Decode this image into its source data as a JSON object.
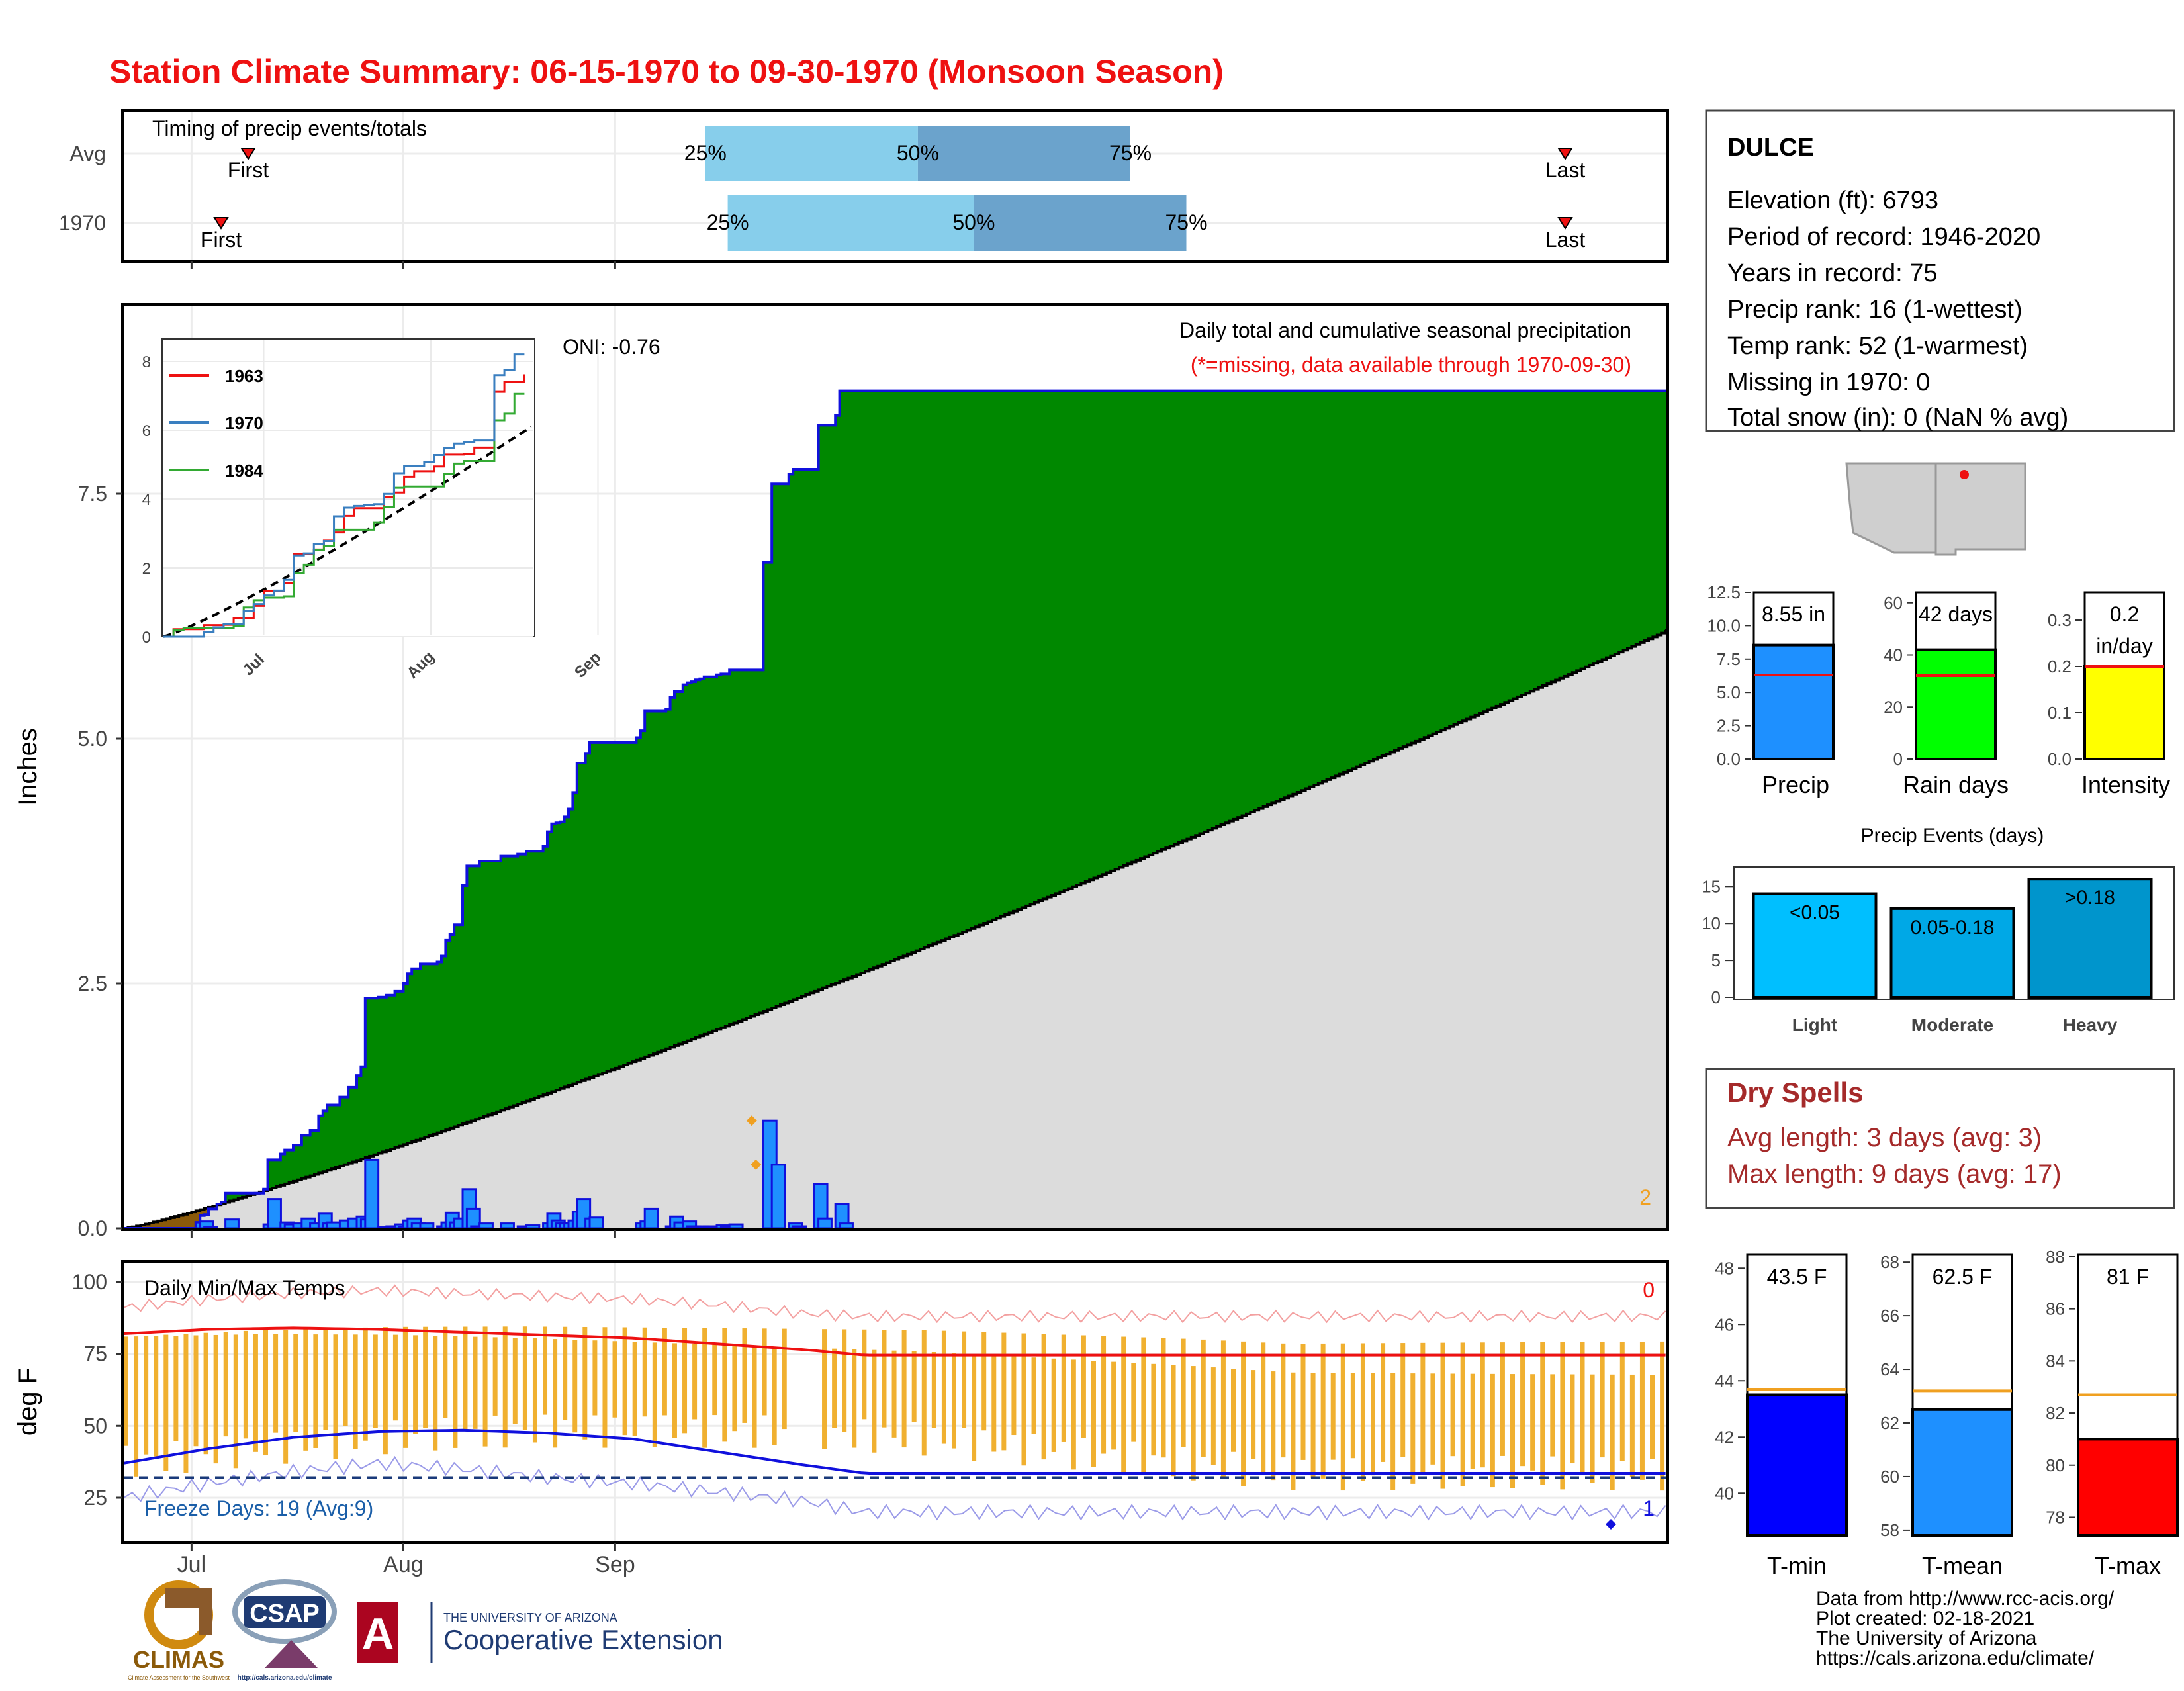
{
  "title": "Station Climate Summary: 06-15-1970 to 09-30-1970 (Monsoon Season)",
  "colors": {
    "title": "#ee1111",
    "precip_line": "#1010dd",
    "above_fill": "#008800",
    "below_fill": "#8b5a0a",
    "normal_fill": "#dcdcdc",
    "daily_bar": "#1e90ff",
    "temp_bar": "#f0b030",
    "tmax": "#ee1111",
    "tmin": "#1010dd",
    "timing_light": "#87ceeb",
    "timing_dark": "#6ba3cc",
    "dry_text": "#a52a2a",
    "rain_days": "#00ff00",
    "intensity": "#ffff00",
    "light": "#00bfff",
    "moderate": "#00a8e6",
    "heavy": "#0095cc"
  },
  "timing": {
    "title": "Timing of precip events/totals",
    "rows": [
      {
        "label": "Avg",
        "first_day": 8,
        "p25": 52,
        "p50": 71,
        "p75": 90,
        "last_day": 127,
        "first_label": "First",
        "last_label": "Last",
        "p25_label": "25%",
        "p50_label": "50%",
        "p75_label": "75%"
      },
      {
        "label": "1970",
        "first_day": 7,
        "p25": 54,
        "p50": 76,
        "p75": 95,
        "last_day": 127,
        "first_label": "First",
        "last_label": "Last",
        "p25_label": "25%",
        "p50_label": "50%",
        "p75_label": "75%"
      }
    ]
  },
  "station": {
    "name": "DULCE",
    "lines": [
      "Elevation (ft): 6793",
      "Period of record: 1946-2020",
      "Years in record: 75",
      "Precip rank: 16 (1-wettest)",
      "Temp rank: 52 (1-warmest)",
      "Missing in 1970: 0",
      "Total snow (in): 0 (NaN % avg)"
    ]
  },
  "main": {
    "ylabel": "Inches",
    "oni": "ONI: -0.76",
    "subtitle": "Daily total and cumulative seasonal precipitation",
    "missing_note": "(*=missing, data available through 1970-09-30)",
    "corner_count": "2",
    "y_ticks": [
      "0.0",
      "2.5",
      "5.0",
      "7.5"
    ]
  },
  "x_ticks": [
    "Jul",
    "Aug",
    "Sep"
  ],
  "inset": {
    "y_ticks": [
      "0",
      "2",
      "4",
      "6",
      "8"
    ],
    "x_ticks": [
      "Jul",
      "Aug",
      "Sep"
    ],
    "legend": [
      "1963",
      "1970",
      "1984"
    ]
  },
  "temps": {
    "ylabel": "deg F",
    "title": "Daily Min/Max Temps",
    "freeze_label": "Freeze Days: 19 (Avg:9)",
    "top_count": "0",
    "bottom_count": "1",
    "y_ticks": [
      "25",
      "50",
      "75",
      "100"
    ]
  },
  "summary_bars": {
    "precip": {
      "label": "Precip",
      "value_label": "8.55 in",
      "value": 8.55,
      "avg": 6.3,
      "ymax": 12.5,
      "ticks": [
        "0.0",
        "2.5",
        "5.0",
        "7.5",
        "10.0",
        "12.5"
      ]
    },
    "rain_days": {
      "label": "Rain days",
      "value_label": "42 days",
      "value": 42,
      "avg": 32,
      "ymax": 64,
      "ticks": [
        "0",
        "20",
        "40",
        "60"
      ]
    },
    "intensity": {
      "label": "Intensity",
      "value_label_1": "0.2",
      "value_label_2": "in/day",
      "value": 0.2,
      "avg": 0.2,
      "ymax": 0.36,
      "ticks": [
        "0.0",
        "0.1",
        "0.2",
        "0.3"
      ]
    }
  },
  "events": {
    "title": "Precip Events (days)",
    "ticks": [
      "0",
      "5",
      "10",
      "15"
    ],
    "bars": [
      {
        "category": "Light",
        "label": "<0.05",
        "value": 14
      },
      {
        "category": "Moderate",
        "label": "0.05-0.18",
        "value": 12
      },
      {
        "category": "Heavy",
        "label": ">0.18",
        "value": 16
      }
    ]
  },
  "dry": {
    "title": "Dry Spells",
    "avg_line": "Avg length: 3 days (avg: 3)",
    "max_line": "Max length: 9 days (avg: 17)"
  },
  "temp_bars": {
    "tmin": {
      "label": "T-min",
      "value_label": "43.5 F",
      "value": 43.5,
      "avg": 43.7,
      "ymin": 38.5,
      "ymax": 48.5,
      "ticks": [
        "40",
        "42",
        "44",
        "46",
        "48"
      ]
    },
    "tmean": {
      "label": "T-mean",
      "value_label": "62.5 F",
      "value": 62.5,
      "avg": 63.2,
      "ymin": 57.8,
      "ymax": 68.3,
      "ticks": [
        "58",
        "60",
        "62",
        "64",
        "66",
        "68"
      ]
    },
    "tmax": {
      "label": "T-max",
      "value_label": "81 F",
      "value": 81,
      "avg": 82.7,
      "ymin": 77.3,
      "ymax": 88.1,
      "ticks": [
        "78",
        "80",
        "82",
        "84",
        "86",
        "88"
      ]
    }
  },
  "footer": {
    "lines": [
      "Data from http://www.rcc-acis.org/",
      "Plot created: 02-18-2021",
      "The University of Arizona",
      "https://cals.arizona.edu/climate/"
    ],
    "climas": "CLIMAS",
    "climas_sub": "Climate Assessment for the Southwest",
    "csap": "CSAP",
    "csap_sub": "http://cals.arizona.edu/climate",
    "ua_line1": "THE UNIVERSITY OF ARIZONA",
    "ua_line2": "Cooperative Extension",
    "ua_mark": "A"
  },
  "chart_data": {
    "type": "area",
    "x_unit": "day of season (0 = 06-15)",
    "cumulative_1970": {
      "x": [
        0,
        17,
        18,
        19,
        20,
        22,
        23,
        24,
        33,
        34,
        37,
        38,
        40,
        42,
        44,
        46,
        47,
        48,
        51,
        53,
        55,
        56,
        57,
        60,
        62,
        63,
        64,
        65,
        66,
        67,
        68,
        70,
        74,
        75,
        76,
        77,
        78,
        80,
        81,
        82,
        84,
        89,
        93,
        95,
        99,
        100,
        101,
        102,
        103,
        104,
        105,
        106,
        107,
        109,
        110,
        121,
        122,
        123,
        128,
        129,
        130,
        132,
        133,
        134,
        135,
        136,
        137,
        140,
        141,
        143,
        151,
        153,
        157,
        158,
        163,
        164,
        168,
        169,
        175
      ],
      "y": [
        0,
        0.06,
        0.13,
        0.14,
        0.2,
        0.25,
        0.27,
        0.36,
        0.4,
        0.7,
        0.76,
        0.8,
        0.85,
        0.95,
        1.0,
        1.15,
        1.2,
        1.26,
        1.34,
        1.44,
        1.56,
        1.65,
        2.35,
        2.36,
        2.38,
        2.38,
        2.42,
        2.42,
        2.5,
        2.6,
        2.65,
        2.7,
        2.72,
        2.78,
        2.94,
        3.0,
        3.1,
        3.5,
        3.7,
        3.7,
        3.75,
        3.8,
        3.82,
        3.85,
        3.9,
        4.05,
        4.13,
        4.14,
        4.15,
        4.2,
        4.28,
        4.45,
        4.75,
        4.85,
        4.96,
        5.01,
        5.08,
        5.28,
        5.3,
        5.42,
        5.48,
        5.55,
        5.57,
        5.58,
        5.6,
        5.61,
        5.63,
        5.65,
        5.66,
        5.7,
        6.8,
        7.6,
        7.7,
        7.75,
        7.75,
        8.2,
        8.3,
        8.55,
        8.55
      ]
    },
    "normal_cumulative_end": 6.1,
    "daily_precip": {
      "x": [
        17,
        18,
        19,
        24,
        33,
        34,
        37,
        38,
        40,
        42,
        44,
        46,
        47,
        48,
        51,
        53,
        55,
        56,
        57,
        60,
        62,
        63,
        64,
        65,
        66,
        67,
        68,
        70,
        74,
        75,
        76,
        77,
        78,
        80,
        81,
        82,
        84,
        89,
        93,
        95,
        99,
        100,
        101,
        102,
        103,
        104,
        105,
        106,
        107,
        109,
        110,
        121,
        122,
        123,
        128,
        129,
        130,
        132,
        133,
        134,
        135,
        136,
        137,
        140,
        141,
        143,
        151,
        153,
        157,
        158,
        163,
        164,
        168,
        169
      ],
      "y": [
        0.06,
        0.07,
        0.01,
        0.09,
        0.04,
        0.3,
        0.06,
        0.04,
        0.05,
        0.1,
        0.05,
        0.15,
        0.05,
        0.06,
        0.08,
        0.1,
        0.12,
        0.09,
        0.7,
        0.01,
        0.02,
        0.02,
        0.04,
        0.01,
        0.08,
        0.1,
        0.05,
        0.05,
        0.02,
        0.06,
        0.16,
        0.06,
        0.1,
        0.4,
        0.2,
        0.02,
        0.05,
        0.05,
        0.02,
        0.03,
        0.05,
        0.15,
        0.08,
        0.05,
        0.05,
        0.05,
        0.08,
        0.17,
        0.3,
        0.1,
        0.11,
        0.05,
        0.07,
        0.2,
        0.02,
        0.12,
        0.06,
        0.07,
        0.02,
        0.01,
        0.02,
        0.01,
        0.02,
        0.03,
        0.01,
        0.04,
        1.1,
        0.65,
        0.05,
        0.02,
        0.45,
        0.1,
        0.25,
        0.05
      ],
      "flagged_days": [
        147,
        148
      ]
    },
    "tmax_normal": {
      "x": [
        0,
        20,
        40,
        60,
        80,
        100,
        120,
        140,
        160,
        175
      ],
      "y": [
        82,
        83.5,
        84,
        83.5,
        82.5,
        81.5,
        80.5,
        78.5,
        76.5,
        74.5
      ]
    },
    "tmin_normal": {
      "x": [
        0,
        20,
        40,
        60,
        80,
        100,
        120,
        140,
        160,
        175
      ],
      "y": [
        37,
        42,
        46,
        48,
        48.5,
        47.5,
        45.5,
        41,
        36.5,
        33.5
      ]
    },
    "tmax_record": {
      "x": [
        0,
        20,
        40,
        60,
        80,
        100,
        120,
        140,
        160,
        175
      ],
      "y": [
        91,
        94,
        96,
        97,
        96,
        95,
        94,
        92,
        89,
        88
      ]
    },
    "tmin_record": {
      "x": [
        0,
        20,
        40,
        60,
        80,
        100,
        120,
        140,
        160,
        175
      ],
      "y": [
        25,
        30,
        34,
        37,
        35,
        32,
        30,
        27,
        24,
        20
      ]
    },
    "freeze_line": 32
  }
}
